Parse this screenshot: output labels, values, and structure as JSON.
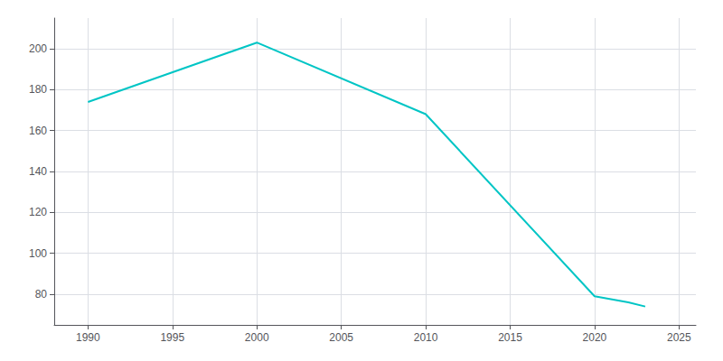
{
  "chart_data": {
    "type": "line",
    "x": [
      1990,
      2000,
      2010,
      2020,
      2022,
      2023
    ],
    "values": [
      174,
      203,
      168,
      79,
      76,
      74
    ],
    "color": "#00C5C5",
    "xlim": [
      1988,
      2026
    ],
    "xticks": [
      1990,
      1995,
      2000,
      2005,
      2010,
      2015,
      2020,
      2025
    ],
    "ylim": [
      65,
      215
    ],
    "yticks": [
      80,
      100,
      120,
      140,
      160,
      180,
      200
    ],
    "grid": true
  }
}
